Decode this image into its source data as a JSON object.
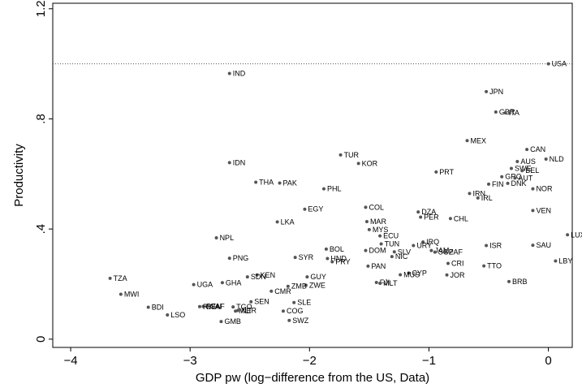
{
  "chart_data": {
    "type": "scatter",
    "xlabel": "GDP pw (log−difference from the US, Data)",
    "ylabel": "Productivity",
    "xlim": [
      -4.15,
      0.2
    ],
    "ylim": [
      -0.03,
      1.22
    ],
    "x_ticks": [
      -4,
      -3,
      -2,
      -1,
      0
    ],
    "x_tick_labels": [
      "−4",
      "−3",
      "−2",
      "−1",
      "0"
    ],
    "y_ticks": [
      0,
      0.4,
      0.8,
      1.2
    ],
    "y_tick_labels": [
      "0",
      ".4",
      ".8",
      "1.2"
    ],
    "reference_line": {
      "y": 1.0,
      "style": "dotted"
    },
    "grid": false,
    "marker_color": "#555555",
    "points": [
      {
        "label": "USA",
        "x": 0.0,
        "y": 1.0
      },
      {
        "label": "IND",
        "x": -2.67,
        "y": 0.965
      },
      {
        "label": "JPN",
        "x": -0.52,
        "y": 0.899
      },
      {
        "label": "GBR",
        "x": -0.44,
        "y": 0.825
      },
      {
        "label": "ITA",
        "x": -0.36,
        "y": 0.822
      },
      {
        "label": "MEX",
        "x": -0.68,
        "y": 0.721
      },
      {
        "label": "CAN",
        "x": -0.18,
        "y": 0.689
      },
      {
        "label": "TUR",
        "x": -1.74,
        "y": 0.669
      },
      {
        "label": "AUS",
        "x": -0.26,
        "y": 0.645
      },
      {
        "label": "NLD",
        "x": -0.02,
        "y": 0.654
      },
      {
        "label": "IDN",
        "x": -2.67,
        "y": 0.641
      },
      {
        "label": "KOR",
        "x": -1.59,
        "y": 0.638
      },
      {
        "label": "SWE",
        "x": -0.31,
        "y": 0.62
      },
      {
        "label": "BEL",
        "x": -0.22,
        "y": 0.612
      },
      {
        "label": "PRT",
        "x": -0.94,
        "y": 0.607
      },
      {
        "label": "GRC",
        "x": -0.39,
        "y": 0.59
      },
      {
        "label": "AUT",
        "x": -0.28,
        "y": 0.585
      },
      {
        "label": "THA",
        "x": -2.45,
        "y": 0.57
      },
      {
        "label": "PAK",
        "x": -2.25,
        "y": 0.567
      },
      {
        "label": "DNK",
        "x": -0.34,
        "y": 0.566
      },
      {
        "label": "FIN",
        "x": -0.5,
        "y": 0.563
      },
      {
        "label": "NOR",
        "x": -0.13,
        "y": 0.546
      },
      {
        "label": "PHL",
        "x": -1.88,
        "y": 0.546
      },
      {
        "label": "IRN",
        "x": -0.66,
        "y": 0.529
      },
      {
        "label": "IRL",
        "x": -0.59,
        "y": 0.513
      },
      {
        "label": "EGY",
        "x": -2.04,
        "y": 0.472
      },
      {
        "label": "COL",
        "x": -1.53,
        "y": 0.479
      },
      {
        "label": "VEN",
        "x": -0.13,
        "y": 0.467
      },
      {
        "label": "DZA",
        "x": -1.09,
        "y": 0.462
      },
      {
        "label": "PER",
        "x": -1.07,
        "y": 0.443
      },
      {
        "label": "CHL",
        "x": -0.82,
        "y": 0.438
      },
      {
        "label": "LKA",
        "x": -2.27,
        "y": 0.426
      },
      {
        "label": "MAR",
        "x": -1.52,
        "y": 0.427
      },
      {
        "label": "LUX",
        "x": 0.16,
        "y": 0.379
      },
      {
        "label": "MYS",
        "x": -1.5,
        "y": 0.398
      },
      {
        "label": "NPL",
        "x": -2.78,
        "y": 0.368
      },
      {
        "label": "ECU",
        "x": -1.41,
        "y": 0.375
      },
      {
        "label": "TUN",
        "x": -1.4,
        "y": 0.346
      },
      {
        "label": "IRQ",
        "x": -1.05,
        "y": 0.353
      },
      {
        "label": "URY",
        "x": -1.13,
        "y": 0.34
      },
      {
        "label": "ISR",
        "x": -0.52,
        "y": 0.34
      },
      {
        "label": "SAU",
        "x": -0.13,
        "y": 0.341
      },
      {
        "label": "BOL",
        "x": -1.86,
        "y": 0.327
      },
      {
        "label": "DOM",
        "x": -1.53,
        "y": 0.322
      },
      {
        "label": "SLV",
        "x": -1.29,
        "y": 0.317
      },
      {
        "label": "JAM",
        "x": -0.98,
        "y": 0.322
      },
      {
        "label": "ZAF",
        "x": -0.86,
        "y": 0.317
      },
      {
        "label": "SGP",
        "x": -0.95,
        "y": 0.316
      },
      {
        "label": "NIC",
        "x": -1.31,
        "y": 0.3
      },
      {
        "label": "SYR",
        "x": -2.12,
        "y": 0.297
      },
      {
        "label": "HND",
        "x": -1.85,
        "y": 0.293
      },
      {
        "label": "PNG",
        "x": -2.67,
        "y": 0.294
      },
      {
        "label": "PRY",
        "x": -1.81,
        "y": 0.281
      },
      {
        "label": "LBY",
        "x": 0.06,
        "y": 0.284
      },
      {
        "label": "CRI",
        "x": -0.84,
        "y": 0.275
      },
      {
        "label": "PAN",
        "x": -1.51,
        "y": 0.265
      },
      {
        "label": "TTO",
        "x": -0.54,
        "y": 0.266
      },
      {
        "label": "CYP",
        "x": -1.17,
        "y": 0.24
      },
      {
        "label": "JOR",
        "x": -0.85,
        "y": 0.233
      },
      {
        "label": "MUS",
        "x": -1.24,
        "y": 0.234
      },
      {
        "label": "KEN",
        "x": -2.44,
        "y": 0.233
      },
      {
        "label": "SDN",
        "x": -2.52,
        "y": 0.226
      },
      {
        "label": "GUY",
        "x": -2.02,
        "y": 0.226
      },
      {
        "label": "TZA",
        "x": -3.67,
        "y": 0.221
      },
      {
        "label": "FJI",
        "x": -1.44,
        "y": 0.206
      },
      {
        "label": "MLT",
        "x": -1.41,
        "y": 0.203
      },
      {
        "label": "GHA",
        "x": -2.73,
        "y": 0.205
      },
      {
        "label": "BRB",
        "x": -0.33,
        "y": 0.209
      },
      {
        "label": "ZWE",
        "x": -2.03,
        "y": 0.196
      },
      {
        "label": "UGA",
        "x": -2.97,
        "y": 0.198
      },
      {
        "label": "ZMB",
        "x": -2.18,
        "y": 0.192
      },
      {
        "label": "CMR",
        "x": -2.32,
        "y": 0.174
      },
      {
        "label": "MWI",
        "x": -3.58,
        "y": 0.163
      },
      {
        "label": "SEN",
        "x": -2.49,
        "y": 0.136
      },
      {
        "label": "SLE",
        "x": -2.13,
        "y": 0.133
      },
      {
        "label": "BDI",
        "x": -3.35,
        "y": 0.116
      },
      {
        "label": "BEN",
        "x": -2.89,
        "y": 0.119
      },
      {
        "label": "CAF",
        "x": -2.86,
        "y": 0.119
      },
      {
        "label": "RWA",
        "x": -2.92,
        "y": 0.118
      },
      {
        "label": "TGO",
        "x": -2.64,
        "y": 0.117
      },
      {
        "label": "MLI",
        "x": -2.62,
        "y": 0.102
      },
      {
        "label": "NER",
        "x": -2.6,
        "y": 0.104
      },
      {
        "label": "COG",
        "x": -2.22,
        "y": 0.102
      },
      {
        "label": "LSO",
        "x": -3.19,
        "y": 0.088
      },
      {
        "label": "SWZ",
        "x": -2.17,
        "y": 0.068
      },
      {
        "label": "GMB",
        "x": -2.74,
        "y": 0.064
      }
    ]
  }
}
